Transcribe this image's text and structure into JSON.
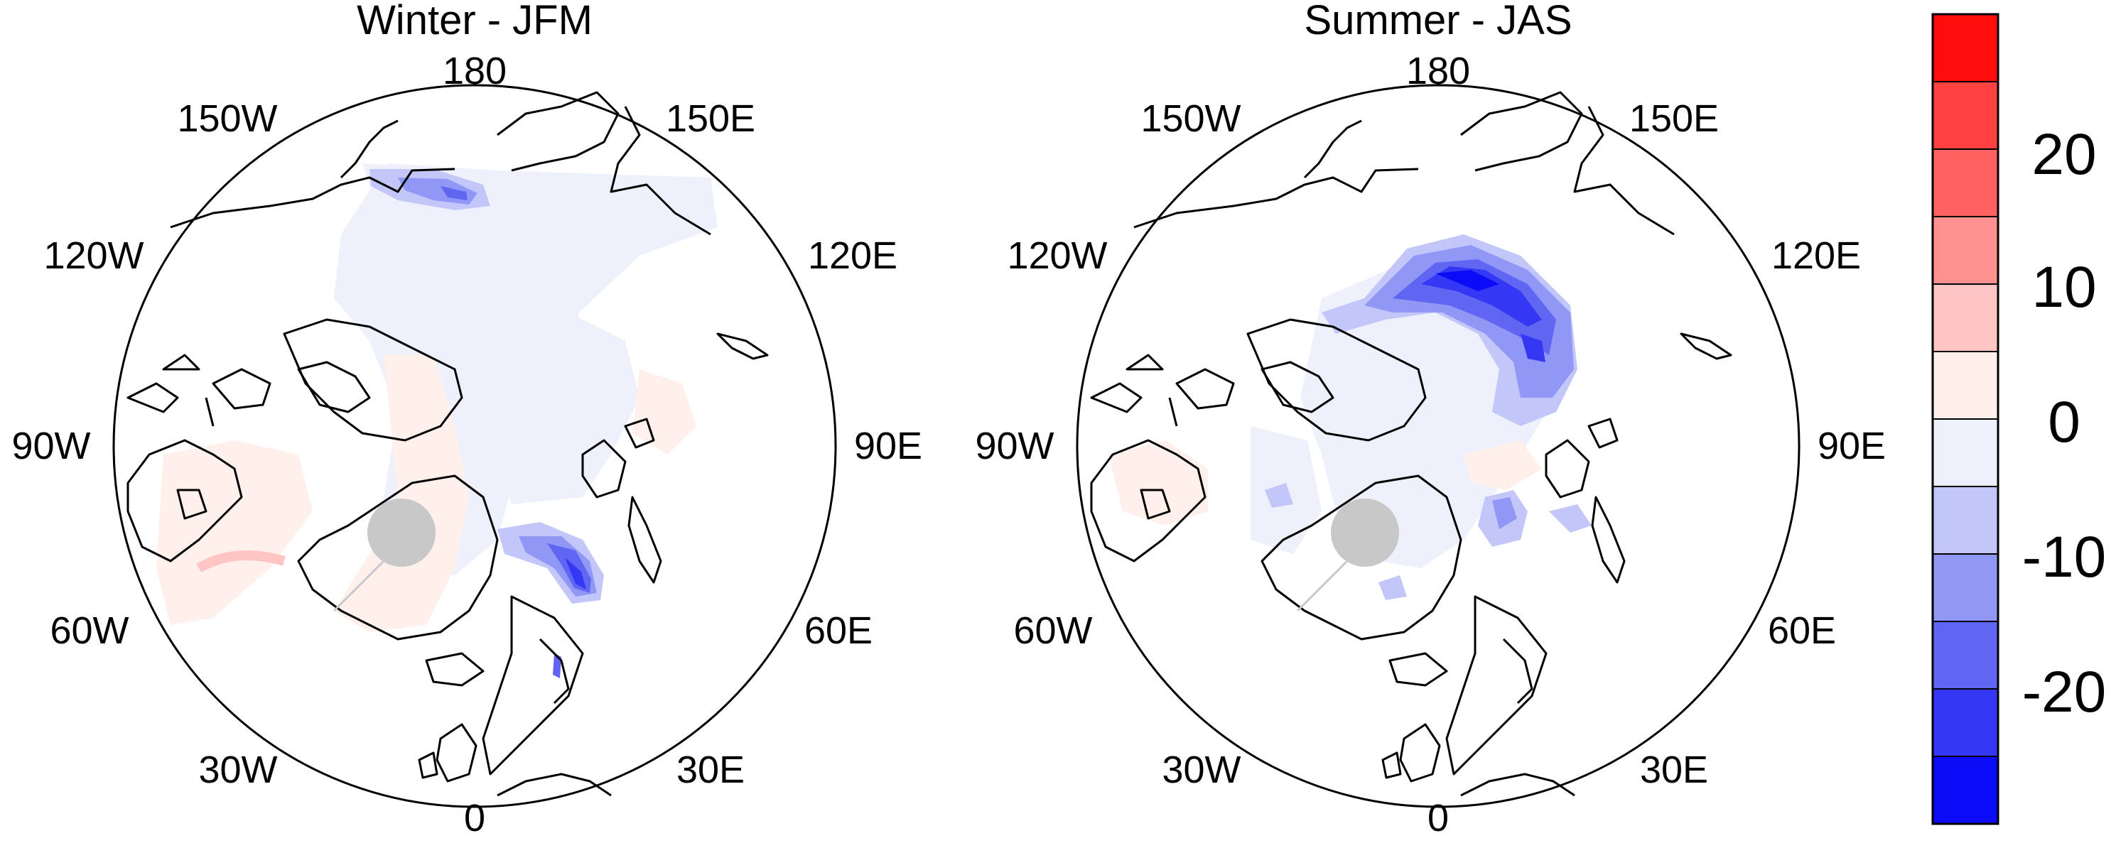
{
  "figure": {
    "panels": [
      {
        "title": "Winter - JFM",
        "lon_labels": [
          "180",
          "150E",
          "120E",
          "90E",
          "60E",
          "30E",
          "0",
          "30W",
          "60W",
          "90W",
          "120W",
          "150W"
        ]
      },
      {
        "title": "Summer - JAS",
        "lon_labels": [
          "180",
          "150E",
          "120E",
          "90E",
          "60E",
          "30E",
          "0",
          "30W",
          "60W",
          "90W",
          "120W",
          "150W"
        ]
      }
    ],
    "colorbar": {
      "tick_labels": [
        "20",
        "10",
        "0",
        "-10",
        "-20"
      ],
      "colors": [
        "#ff0d0d",
        "#ff4040",
        "#ff6060",
        "#ff9090",
        "#ffc4c4",
        "#fff0ec",
        "#eef0fb",
        "#c2c6f8",
        "#9197f5",
        "#6066f2",
        "#3438f4",
        "#0b0bf7"
      ]
    },
    "colors": {
      "land_outline": "#000000",
      "pole_hole": "#c8c8c8"
    }
  }
}
